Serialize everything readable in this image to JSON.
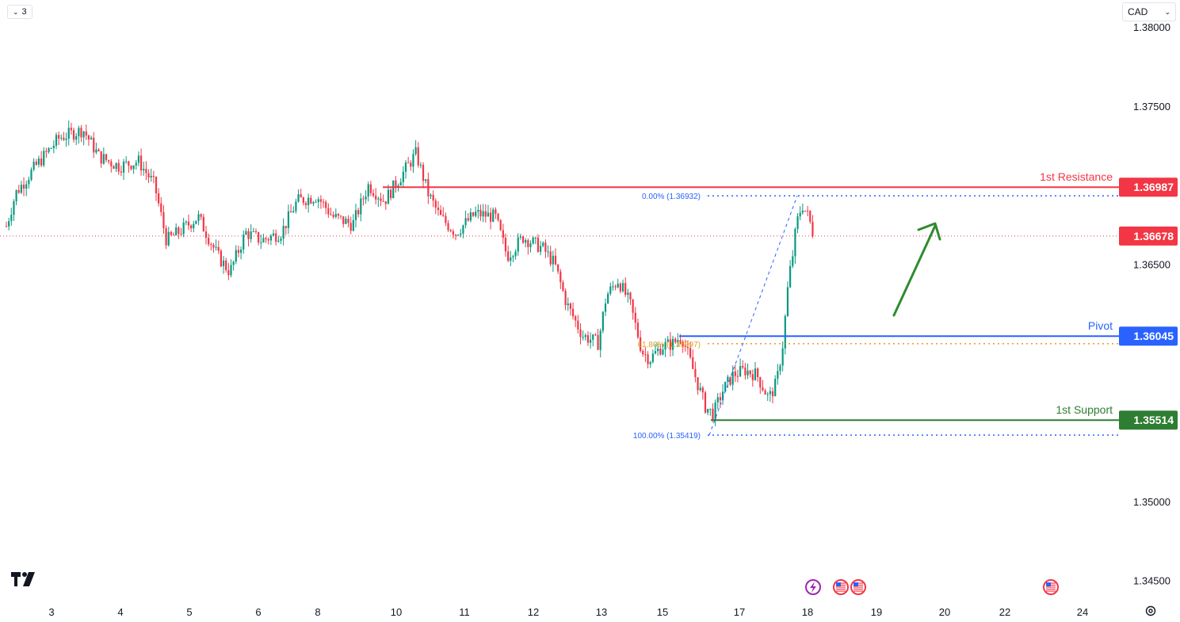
{
  "toolbar": {
    "interval_label": "3",
    "currency_label": "CAD"
  },
  "colors": {
    "bull": "#089981",
    "bear": "#f23645",
    "resistance": "#f23645",
    "pivot": "#2962ff",
    "support": "#2e7d32",
    "fib": "#2962ff",
    "fib618": "#e1a11c",
    "arrow": "#2e8b2e"
  },
  "chart_data": {
    "type": "candlestick",
    "instrument_currency": "CAD",
    "y_axis": {
      "ticks": [
        "1.38000",
        "1.37500",
        "1.36500",
        "1.35000",
        "1.34500"
      ],
      "range": [
        1.3445,
        1.3802
      ]
    },
    "x_axis": {
      "ticks": [
        "3",
        "4",
        "5",
        "6",
        "8",
        "10",
        "11",
        "12",
        "13",
        "15",
        "17",
        "18",
        "19",
        "20",
        "22",
        "24"
      ]
    },
    "levels": [
      {
        "name": "1st Resistance",
        "value": "1.36987"
      },
      {
        "name": "Pivot",
        "value": "1.36045"
      },
      {
        "name": "1st Support",
        "value": "1.35514"
      }
    ],
    "last_price": "1.36678",
    "fibonacci": [
      {
        "label": "0.00% (1.36932)",
        "value": 1.36932
      },
      {
        "label": "61.80% (1.35997)",
        "value": 1.35997
      },
      {
        "label": "100.00% (1.35419)",
        "value": 1.35419
      }
    ],
    "price_path": [
      [
        0,
        1.366
      ],
      [
        20,
        1.3695
      ],
      [
        45,
        1.3712
      ],
      [
        75,
        1.373
      ],
      [
        105,
        1.3735
      ],
      [
        125,
        1.3718
      ],
      [
        150,
        1.3712
      ],
      [
        175,
        1.3715
      ],
      [
        195,
        1.37
      ],
      [
        210,
        1.3665
      ],
      [
        225,
        1.367
      ],
      [
        250,
        1.368
      ],
      [
        275,
        1.3655
      ],
      [
        290,
        1.3645
      ],
      [
        310,
        1.367
      ],
      [
        330,
        1.3665
      ],
      [
        355,
        1.367
      ],
      [
        375,
        1.369
      ],
      [
        400,
        1.3693
      ],
      [
        420,
        1.368
      ],
      [
        445,
        1.3675
      ],
      [
        465,
        1.37
      ],
      [
        485,
        1.369
      ],
      [
        505,
        1.3705
      ],
      [
        525,
        1.372
      ],
      [
        540,
        1.3695
      ],
      [
        555,
        1.368
      ],
      [
        575,
        1.367
      ],
      [
        600,
        1.3682
      ],
      [
        625,
        1.368
      ],
      [
        640,
        1.3655
      ],
      [
        660,
        1.3667
      ],
      [
        685,
        1.366
      ],
      [
        700,
        1.365
      ],
      [
        715,
        1.3625
      ],
      [
        735,
        1.3605
      ],
      [
        755,
        1.36
      ],
      [
        765,
        1.363
      ],
      [
        780,
        1.364
      ],
      [
        795,
        1.3625
      ],
      [
        810,
        1.3595
      ],
      [
        820,
        1.359
      ],
      [
        835,
        1.3598
      ],
      [
        850,
        1.36
      ],
      [
        860,
        1.3605
      ],
      [
        870,
        1.359
      ],
      [
        880,
        1.3575
      ],
      [
        890,
        1.356
      ],
      [
        900,
        1.3555
      ],
      [
        912,
        1.357
      ],
      [
        925,
        1.358
      ],
      [
        940,
        1.3583
      ],
      [
        955,
        1.358
      ],
      [
        970,
        1.3565
      ],
      [
        980,
        1.3575
      ],
      [
        988,
        1.36
      ],
      [
        995,
        1.364
      ],
      [
        1000,
        1.3655
      ],
      [
        1005,
        1.3675
      ],
      [
        1012,
        1.3688
      ],
      [
        1020,
        1.368
      ],
      [
        1027,
        1.3668
      ]
    ]
  }
}
